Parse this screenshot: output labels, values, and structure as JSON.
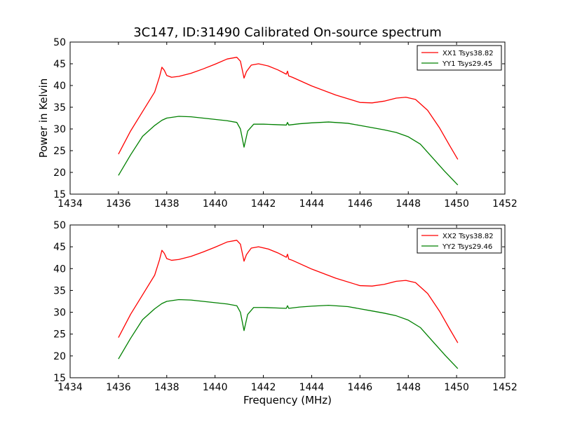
{
  "figure": {
    "title": "3C147, ID:31490 Calibrated On-source spectrum"
  },
  "colors": {
    "XX": "#ff0000",
    "YY": "#008000"
  },
  "chart_data": [
    {
      "type": "line",
      "title": "3C147, ID:31490 Calibrated On-source spectrum",
      "xlabel": "",
      "ylabel": "Power in Kelvin",
      "xlim": [
        1434,
        1452
      ],
      "ylim": [
        15,
        50
      ],
      "xticks": [
        1434,
        1436,
        1438,
        1440,
        1442,
        1444,
        1446,
        1448,
        1450,
        1452
      ],
      "yticks": [
        15,
        20,
        25,
        30,
        35,
        40,
        45,
        50
      ],
      "grid": false,
      "legend_position": "top-right",
      "series": [
        {
          "name": "XX1 Tsys38.82",
          "color": "#ff0000",
          "x": [
            1436.0,
            1436.5,
            1437.0,
            1437.5,
            1437.7,
            1437.8,
            1437.9,
            1438.0,
            1438.2,
            1438.5,
            1439.0,
            1439.5,
            1440.0,
            1440.5,
            1440.9,
            1441.05,
            1441.15,
            1441.2,
            1441.3,
            1441.5,
            1441.8,
            1442.2,
            1442.6,
            1442.95,
            1443.0,
            1443.05,
            1443.2,
            1444.0,
            1445.0,
            1446.0,
            1446.5,
            1447.0,
            1447.5,
            1447.9,
            1448.3,
            1448.8,
            1449.3,
            1449.7,
            1450.05
          ],
          "y": [
            24.2,
            29.5,
            34.0,
            38.5,
            42.0,
            44.2,
            43.5,
            42.3,
            41.9,
            42.1,
            42.8,
            43.8,
            44.9,
            46.1,
            46.5,
            45.6,
            43.0,
            41.7,
            43.2,
            44.7,
            45.0,
            44.5,
            43.6,
            42.6,
            43.3,
            42.2,
            41.9,
            39.9,
            37.8,
            36.1,
            36.0,
            36.4,
            37.1,
            37.3,
            36.8,
            34.3,
            30.2,
            26.3,
            23.0
          ]
        },
        {
          "name": "YY1 Tsys29.45",
          "color": "#008000",
          "x": [
            1436.0,
            1436.5,
            1437.0,
            1437.5,
            1437.8,
            1438.0,
            1438.5,
            1439.0,
            1439.5,
            1440.0,
            1440.5,
            1440.9,
            1441.05,
            1441.2,
            1441.35,
            1441.6,
            1442.0,
            1442.5,
            1442.95,
            1443.0,
            1443.05,
            1443.5,
            1444.0,
            1444.7,
            1445.5,
            1446.0,
            1446.5,
            1447.0,
            1447.5,
            1448.0,
            1448.5,
            1449.0,
            1449.5,
            1450.05
          ],
          "y": [
            19.3,
            24.0,
            28.3,
            30.8,
            32.0,
            32.5,
            32.9,
            32.8,
            32.5,
            32.2,
            31.9,
            31.5,
            30.0,
            25.8,
            29.5,
            31.1,
            31.1,
            31.0,
            30.9,
            31.5,
            30.9,
            31.2,
            31.4,
            31.6,
            31.3,
            30.8,
            30.3,
            29.8,
            29.2,
            28.2,
            26.5,
            23.4,
            20.3,
            17.1
          ]
        }
      ]
    },
    {
      "type": "line",
      "title": "",
      "xlabel": "Frequency (MHz)",
      "ylabel": "",
      "xlim": [
        1434,
        1452
      ],
      "ylim": [
        15,
        50
      ],
      "xticks": [
        1434,
        1436,
        1438,
        1440,
        1442,
        1444,
        1446,
        1448,
        1450,
        1452
      ],
      "yticks": [
        15,
        20,
        25,
        30,
        35,
        40,
        45,
        50
      ],
      "grid": false,
      "legend_position": "top-right",
      "series": [
        {
          "name": "XX2 Tsys38.82",
          "color": "#ff0000",
          "x": [
            1436.0,
            1436.5,
            1437.0,
            1437.5,
            1437.7,
            1437.8,
            1437.9,
            1438.0,
            1438.2,
            1438.5,
            1439.0,
            1439.5,
            1440.0,
            1440.5,
            1440.9,
            1441.05,
            1441.15,
            1441.2,
            1441.3,
            1441.5,
            1441.8,
            1442.2,
            1442.6,
            1442.95,
            1443.0,
            1443.05,
            1443.2,
            1444.0,
            1445.0,
            1446.0,
            1446.5,
            1447.0,
            1447.5,
            1447.9,
            1448.3,
            1448.8,
            1449.3,
            1449.7,
            1450.05
          ],
          "y": [
            24.2,
            29.5,
            34.0,
            38.5,
            42.0,
            44.2,
            43.5,
            42.3,
            41.9,
            42.1,
            42.8,
            43.8,
            44.9,
            46.1,
            46.5,
            45.6,
            43.0,
            41.7,
            43.2,
            44.7,
            45.0,
            44.5,
            43.6,
            42.6,
            43.3,
            42.2,
            41.9,
            39.9,
            37.8,
            36.1,
            36.0,
            36.4,
            37.1,
            37.3,
            36.8,
            34.3,
            30.2,
            26.3,
            23.0
          ]
        },
        {
          "name": "YY2 Tsys29.46",
          "color": "#008000",
          "x": [
            1436.0,
            1436.5,
            1437.0,
            1437.5,
            1437.8,
            1438.0,
            1438.5,
            1439.0,
            1439.5,
            1440.0,
            1440.5,
            1440.9,
            1441.05,
            1441.2,
            1441.35,
            1441.6,
            1442.0,
            1442.5,
            1442.95,
            1443.0,
            1443.05,
            1443.5,
            1444.0,
            1444.7,
            1445.5,
            1446.0,
            1446.5,
            1447.0,
            1447.5,
            1448.0,
            1448.5,
            1449.0,
            1449.5,
            1450.05
          ],
          "y": [
            19.3,
            24.0,
            28.3,
            30.8,
            32.0,
            32.5,
            32.9,
            32.8,
            32.5,
            32.2,
            31.9,
            31.5,
            30.0,
            25.8,
            29.5,
            31.1,
            31.1,
            31.0,
            30.9,
            31.5,
            30.9,
            31.2,
            31.4,
            31.6,
            31.3,
            30.8,
            30.3,
            29.8,
            29.2,
            28.2,
            26.5,
            23.4,
            20.3,
            17.1
          ]
        }
      ]
    }
  ]
}
